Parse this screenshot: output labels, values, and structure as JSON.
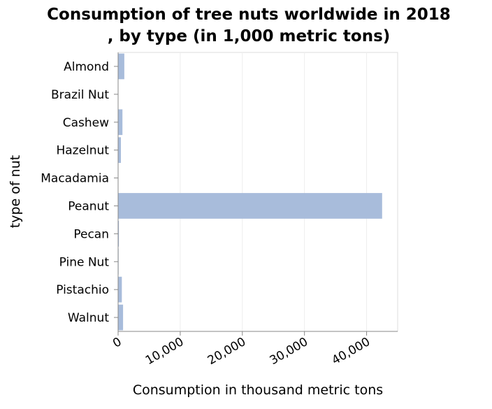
{
  "chart_data": {
    "type": "bar",
    "orientation": "horizontal",
    "title_line1": "Consumption of tree nuts worldwide in 2018",
    "title_line2": ", by type (in 1,000 metric tons)",
    "xlabel": "Consumption in thousand metric tons",
    "ylabel": "type of nut",
    "xlim": [
      0,
      45000
    ],
    "x_ticks": [
      0,
      10000,
      20000,
      30000,
      40000
    ],
    "x_tick_labels": [
      "0",
      "10,000",
      "20,000",
      "30,000",
      "40,000"
    ],
    "categories": [
      "Almond",
      "Brazil Nut",
      "Cashew",
      "Hazelnut",
      "Macadamia",
      "Peanut",
      "Pecan",
      "Pine Nut",
      "Pistachio",
      "Walnut"
    ],
    "values": [
      1000,
      30,
      700,
      450,
      50,
      42500,
      130,
      80,
      600,
      800
    ],
    "grid": "vertical",
    "bar_color": "#a8bcdb"
  }
}
